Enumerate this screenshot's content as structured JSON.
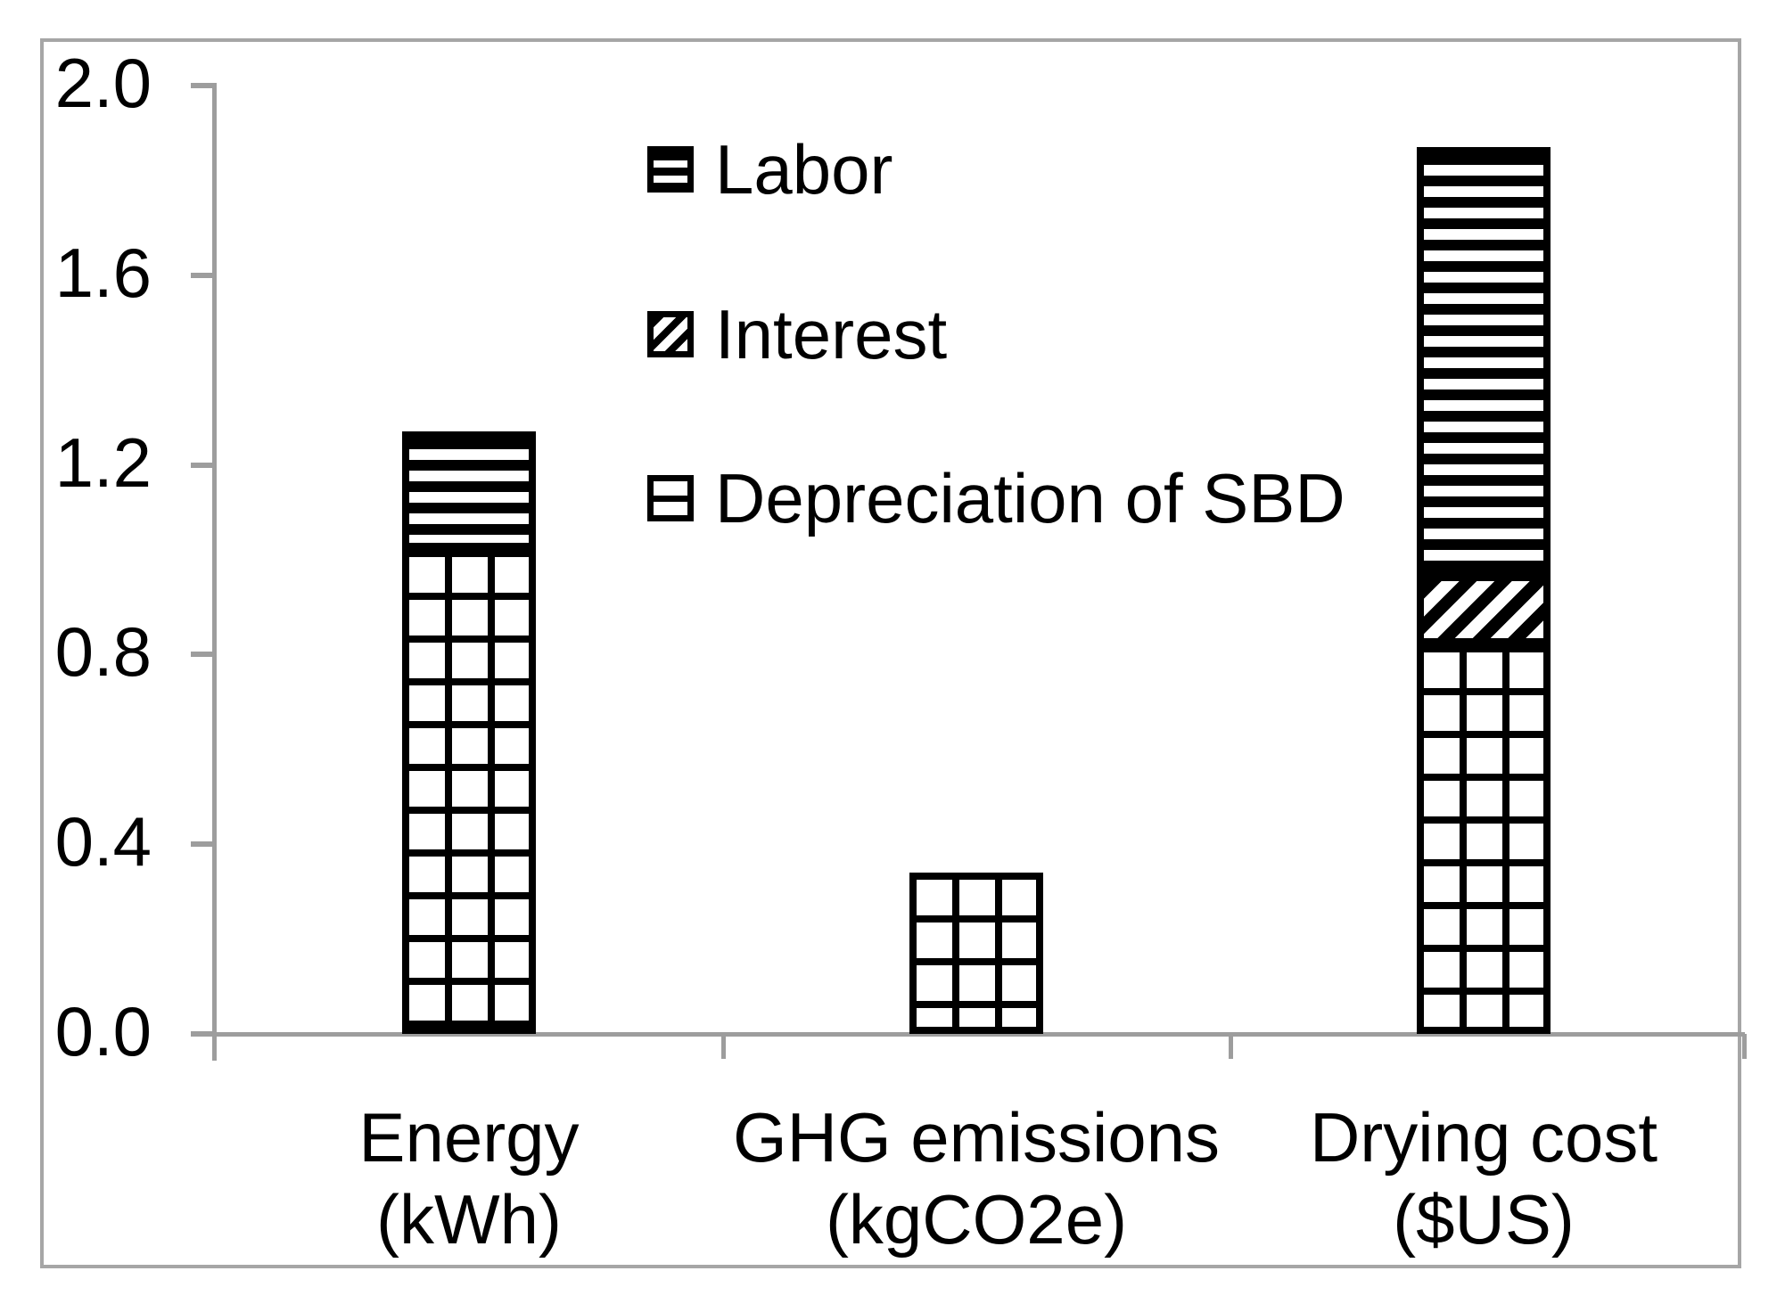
{
  "chart_data": {
    "type": "bar",
    "stacked": true,
    "title": "",
    "xlabel": "",
    "ylabel": "",
    "categories": [
      "Energy (kWh)",
      "GHG emissions (kgCO2e)",
      "Drying cost ($US)"
    ],
    "categories_lines": [
      [
        "Energy",
        "(kWh)"
      ],
      [
        "GHG emissions",
        "(kgCO2e)"
      ],
      [
        "Drying cost",
        "($US)"
      ]
    ],
    "series": [
      {
        "name": "Depreciation of SBD",
        "pattern": "grid",
        "values": [
          1.02,
          0.34,
          0.82
        ]
      },
      {
        "name": "Interest",
        "pattern": "diagonal",
        "values": [
          0,
          0,
          0.15
        ]
      },
      {
        "name": "Labor",
        "pattern": "hstripes",
        "values": [
          0.25,
          0,
          0.9
        ]
      }
    ],
    "ylim": [
      0,
      2.0
    ],
    "yticks": [
      0.0,
      0.4,
      0.8,
      1.2,
      1.6,
      2.0
    ],
    "ytick_labels": [
      "0.0",
      "0.4",
      "0.8",
      "1.2",
      "1.6",
      "2.0"
    ],
    "grid": false,
    "legend_position": "upper-center-inside",
    "legend": [
      {
        "label": "Labor",
        "pattern": "hstripes"
      },
      {
        "label": "Interest",
        "pattern": "diagonal"
      },
      {
        "label": "Depreciation of SBD",
        "pattern": "grid"
      }
    ],
    "colors": {
      "series_fill": "#000000",
      "background": "#ffffff",
      "axis_gray": "#9d9d9d",
      "frame_gray": "#a6a6a6"
    }
  }
}
